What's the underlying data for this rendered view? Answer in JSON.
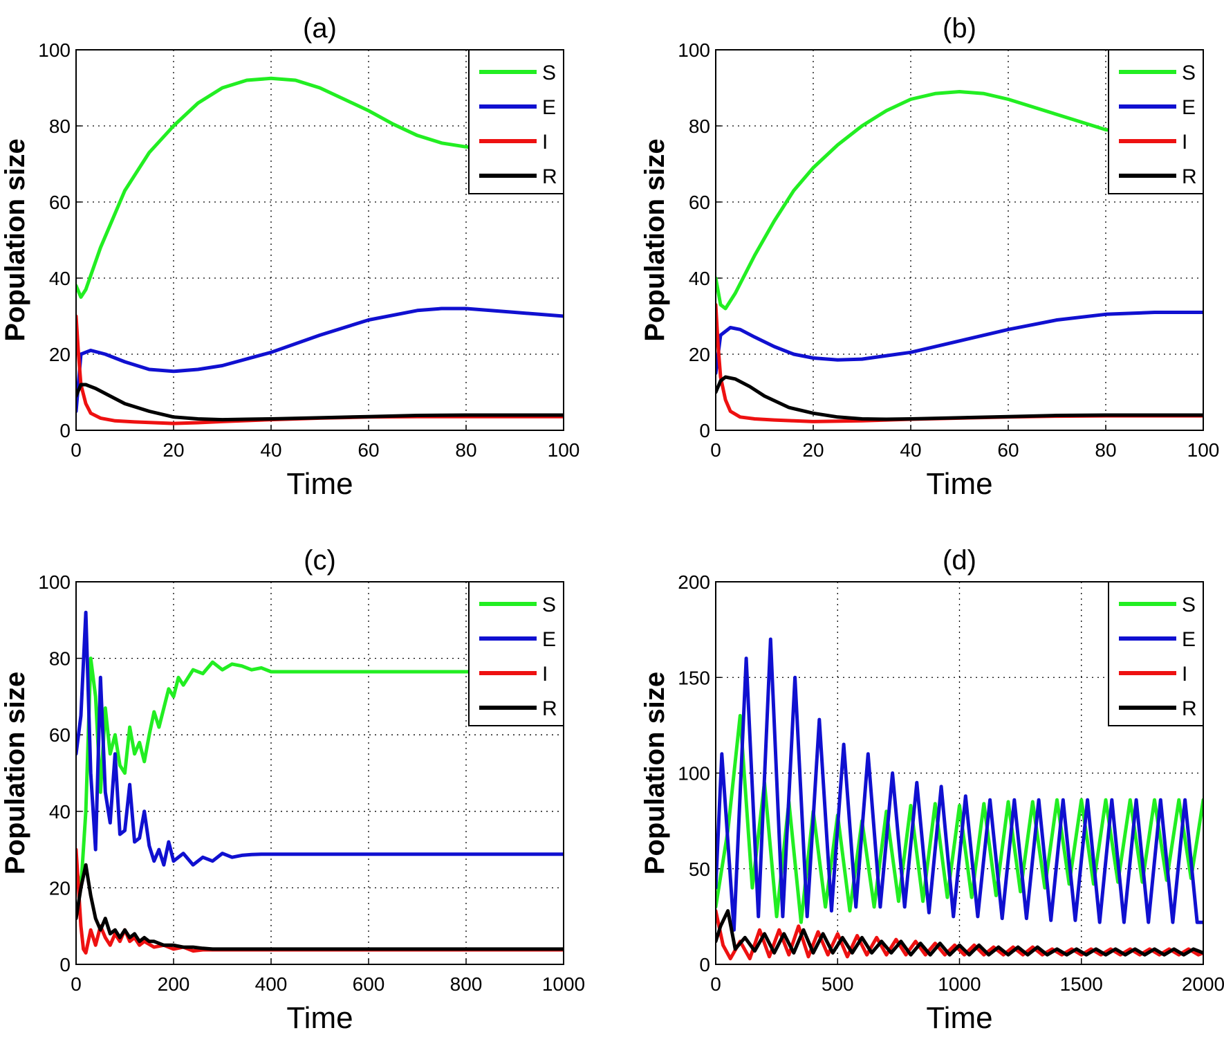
{
  "colors": {
    "S": "#22ee22",
    "E": "#1010d0",
    "I": "#ee1111",
    "R": "#000000"
  },
  "chart_data": [
    {
      "type": "line",
      "title": "(a)",
      "xlabel": "Time",
      "ylabel": "Population size",
      "xlim": [
        0,
        100
      ],
      "ylim": [
        0,
        100
      ],
      "xticks": [
        "0",
        "20",
        "40",
        "60",
        "80",
        "100"
      ],
      "yticks": [
        "0",
        "20",
        "40",
        "60",
        "80",
        "100"
      ],
      "grid": true,
      "legend": "top-right",
      "series": [
        {
          "name": "S",
          "x": [
            0,
            1,
            2,
            5,
            10,
            15,
            20,
            25,
            30,
            35,
            40,
            45,
            50,
            55,
            60,
            65,
            70,
            75,
            80,
            85,
            90,
            95,
            100
          ],
          "y": [
            38,
            35,
            37,
            48,
            63,
            73,
            80,
            86,
            90,
            92,
            92.5,
            92,
            90,
            87,
            84,
            80.5,
            77.5,
            75.5,
            74.5,
            74,
            74.5,
            75.5,
            76.5
          ]
        },
        {
          "name": "E",
          "x": [
            0,
            1,
            3,
            6,
            10,
            15,
            20,
            25,
            30,
            40,
            50,
            60,
            70,
            75,
            80,
            85,
            90,
            95,
            100
          ],
          "y": [
            5,
            20,
            21,
            20,
            18,
            16,
            15.5,
            16,
            17,
            20.5,
            25,
            29,
            31.5,
            32,
            32,
            31.5,
            31,
            30.5,
            30
          ]
        },
        {
          "name": "I",
          "x": [
            0,
            0.5,
            1,
            2,
            3,
            5,
            8,
            12,
            16,
            20,
            25,
            30,
            40,
            50,
            60,
            70,
            80,
            90,
            100
          ],
          "y": [
            30,
            20,
            12,
            7,
            4.5,
            3.2,
            2.5,
            2.2,
            2,
            1.8,
            2,
            2.3,
            2.8,
            3.2,
            3.5,
            3.6,
            3.6,
            3.6,
            3.6
          ]
        },
        {
          "name": "R",
          "x": [
            0,
            1,
            2,
            4,
            7,
            10,
            15,
            20,
            25,
            30,
            35,
            40,
            50,
            60,
            70,
            80,
            90,
            100
          ],
          "y": [
            9,
            12,
            12,
            11,
            9,
            7,
            5,
            3.5,
            3,
            2.8,
            2.9,
            3,
            3.3,
            3.6,
            3.9,
            4,
            4,
            4
          ]
        }
      ]
    },
    {
      "type": "line",
      "title": "(b)",
      "xlabel": "Time",
      "ylabel": "Population size",
      "xlim": [
        0,
        100
      ],
      "ylim": [
        0,
        100
      ],
      "xticks": [
        "0",
        "20",
        "40",
        "60",
        "80",
        "100"
      ],
      "yticks": [
        "0",
        "20",
        "40",
        "60",
        "80",
        "100"
      ],
      "grid": true,
      "legend": "top-right",
      "series": [
        {
          "name": "S",
          "x": [
            0,
            1,
            2,
            4,
            8,
            12,
            16,
            20,
            25,
            30,
            35,
            40,
            45,
            50,
            55,
            60,
            65,
            70,
            75,
            80,
            85,
            90,
            95,
            100
          ],
          "y": [
            40,
            33,
            32,
            36,
            46,
            55,
            63,
            69,
            75,
            80,
            84,
            87,
            88.5,
            89,
            88.5,
            87,
            85,
            83,
            81,
            79,
            78.5,
            78.5,
            79,
            80
          ]
        },
        {
          "name": "E",
          "x": [
            0,
            1,
            3,
            5,
            8,
            12,
            16,
            20,
            25,
            30,
            40,
            50,
            60,
            70,
            80,
            90,
            100
          ],
          "y": [
            15,
            25,
            27,
            26.5,
            24.5,
            22,
            20,
            19,
            18.5,
            18.7,
            20.5,
            23.5,
            26.5,
            29,
            30.5,
            31,
            31
          ]
        },
        {
          "name": "I",
          "x": [
            0,
            0.5,
            1,
            2,
            3,
            5,
            8,
            12,
            16,
            20,
            30,
            40,
            50,
            60,
            70,
            80,
            90,
            100
          ],
          "y": [
            33,
            22,
            14,
            8,
            5,
            3.5,
            3,
            2.7,
            2.5,
            2.3,
            2.5,
            2.9,
            3.2,
            3.5,
            3.7,
            3.8,
            3.8,
            3.8
          ]
        },
        {
          "name": "R",
          "x": [
            0,
            1,
            2,
            4,
            7,
            10,
            15,
            20,
            25,
            30,
            35,
            40,
            50,
            60,
            70,
            80,
            90,
            100
          ],
          "y": [
            10,
            13,
            14,
            13.5,
            11.5,
            9,
            6,
            4.5,
            3.5,
            3,
            2.9,
            3,
            3.3,
            3.6,
            3.9,
            4,
            4,
            4
          ]
        }
      ]
    },
    {
      "type": "line",
      "title": "(c)",
      "xlabel": "Time",
      "ylabel": "Population size",
      "xlim": [
        0,
        1000
      ],
      "ylim": [
        0,
        100
      ],
      "xticks": [
        "0",
        "200",
        "400",
        "600",
        "800",
        "1000"
      ],
      "yticks": [
        "0",
        "20",
        "40",
        "60",
        "80",
        "100"
      ],
      "grid": true,
      "legend": "top-right",
      "series": [
        {
          "name": "S",
          "x": [
            0,
            10,
            20,
            30,
            40,
            50,
            60,
            70,
            80,
            90,
            100,
            110,
            120,
            130,
            140,
            150,
            160,
            170,
            180,
            190,
            200,
            210,
            220,
            240,
            260,
            280,
            300,
            320,
            340,
            360,
            380,
            400,
            450,
            500,
            600,
            700,
            800,
            900,
            1000
          ],
          "y": [
            25,
            20,
            40,
            80,
            70,
            45,
            67,
            55,
            60,
            52,
            50,
            62,
            55,
            58,
            53,
            60,
            66,
            62,
            67,
            72,
            70,
            75,
            73,
            77,
            76,
            79,
            77,
            78.5,
            78,
            77,
            77.5,
            76.5,
            76.5,
            76.5,
            76.5,
            76.5,
            76.5,
            76.5,
            76.5
          ]
        },
        {
          "name": "E",
          "x": [
            0,
            10,
            20,
            30,
            40,
            50,
            60,
            70,
            80,
            90,
            100,
            110,
            120,
            130,
            140,
            150,
            160,
            170,
            180,
            190,
            200,
            220,
            240,
            260,
            280,
            300,
            320,
            340,
            360,
            380,
            400,
            450,
            500,
            600,
            700,
            800,
            900,
            1000
          ],
          "y": [
            55,
            65,
            92,
            50,
            30,
            75,
            45,
            37,
            55,
            34,
            35,
            47,
            32,
            33,
            40,
            31,
            27,
            30,
            26,
            32,
            27,
            29,
            26,
            28,
            27,
            29,
            28,
            28.5,
            28.7,
            28.8,
            28.8,
            28.8,
            28.8,
            28.8,
            28.8,
            28.8,
            28.8,
            28.8
          ]
        },
        {
          "name": "I",
          "x": [
            0,
            5,
            10,
            15,
            20,
            30,
            40,
            50,
            60,
            70,
            80,
            90,
            100,
            110,
            120,
            130,
            140,
            160,
            180,
            200,
            220,
            240,
            260,
            300,
            350,
            400,
            500,
            600,
            700,
            800,
            900,
            1000
          ],
          "y": [
            30,
            20,
            10,
            4,
            3,
            9,
            5,
            10,
            7,
            5,
            8,
            6,
            9,
            6,
            7,
            5,
            6,
            4.5,
            5,
            4,
            4.5,
            3.5,
            3.8,
            3.8,
            3.8,
            3.8,
            3.8,
            3.8,
            3.8,
            3.8,
            3.8,
            3.8
          ]
        },
        {
          "name": "R",
          "x": [
            0,
            10,
            20,
            25,
            30,
            40,
            50,
            60,
            70,
            80,
            90,
            100,
            110,
            120,
            130,
            140,
            150,
            160,
            180,
            200,
            220,
            240,
            260,
            280,
            300,
            350,
            400,
            500,
            600,
            700,
            800,
            900,
            1000
          ],
          "y": [
            12,
            20,
            26,
            22,
            18,
            12,
            9,
            12,
            8,
            9,
            7,
            9,
            7,
            8,
            6,
            7,
            6,
            6,
            5,
            5,
            4.5,
            4.5,
            4.2,
            4,
            4,
            4,
            4,
            4,
            4,
            4,
            4,
            4,
            4
          ]
        }
      ]
    },
    {
      "type": "line",
      "title": "(d)",
      "xlabel": "Time",
      "ylabel": "Population size",
      "xlim": [
        0,
        2000
      ],
      "ylim": [
        0,
        200
      ],
      "xticks": [
        "0",
        "500",
        "1000",
        "1500",
        "2000"
      ],
      "yticks": [
        "0",
        "50",
        "100",
        "150",
        "200"
      ],
      "grid": true,
      "legend": "top-right",
      "series": [
        {
          "name": "S",
          "x": [
            0,
            50,
            100,
            150,
            200,
            250,
            300,
            350,
            400,
            450,
            500,
            550,
            600,
            650,
            700,
            750,
            800,
            850,
            900,
            950,
            1000,
            1050,
            1100,
            1150,
            1200,
            1250,
            1300,
            1350,
            1400,
            1450,
            1500,
            1550,
            1600,
            1650,
            1700,
            1750,
            1800,
            1850,
            1900,
            1950,
            2000
          ],
          "y": [
            30,
            70,
            130,
            40,
            95,
            25,
            85,
            22,
            80,
            30,
            78,
            28,
            75,
            30,
            80,
            33,
            83,
            33,
            84,
            35,
            83,
            35,
            84,
            36,
            85,
            38,
            85,
            40,
            86,
            42,
            86,
            42,
            86,
            43,
            86,
            43,
            86,
            44,
            86,
            45,
            86
          ]
        },
        {
          "name": "E",
          "x": [
            0,
            25,
            75,
            125,
            175,
            225,
            275,
            325,
            375,
            425,
            475,
            525,
            575,
            625,
            675,
            725,
            775,
            825,
            875,
            925,
            975,
            1025,
            1075,
            1125,
            1175,
            1225,
            1275,
            1325,
            1375,
            1425,
            1475,
            1525,
            1575,
            1625,
            1675,
            1725,
            1775,
            1825,
            1875,
            1925,
            1975,
            2000
          ],
          "y": [
            40,
            110,
            18,
            160,
            25,
            170,
            25,
            150,
            25,
            128,
            28,
            115,
            30,
            110,
            30,
            100,
            30,
            95,
            27,
            93,
            25,
            88,
            25,
            86,
            24,
            86,
            24,
            86,
            23,
            86,
            23,
            86,
            22,
            86,
            22,
            86,
            22,
            86,
            22,
            86,
            22,
            22
          ]
        },
        {
          "name": "I",
          "x": [
            0,
            30,
            60,
            100,
            140,
            180,
            220,
            260,
            300,
            340,
            380,
            420,
            460,
            500,
            540,
            580,
            620,
            660,
            700,
            740,
            780,
            820,
            860,
            900,
            940,
            980,
            1020,
            1060,
            1100,
            1140,
            1180,
            1220,
            1260,
            1300,
            1340,
            1380,
            1420,
            1460,
            1500,
            1540,
            1580,
            1620,
            1660,
            1700,
            1740,
            1780,
            1820,
            1860,
            1900,
            1940,
            1980,
            2000
          ],
          "y": [
            28,
            10,
            3,
            12,
            3,
            18,
            4,
            18,
            5,
            20,
            4,
            17,
            5,
            16,
            4,
            15,
            5,
            14,
            5,
            13,
            5,
            12,
            5,
            11,
            5,
            10,
            5,
            10,
            5,
            9,
            5,
            9,
            5,
            9,
            5,
            8,
            5,
            8,
            5,
            8,
            5,
            8,
            5,
            8,
            5,
            8,
            5,
            8,
            5,
            8,
            5,
            6
          ]
        },
        {
          "name": "R",
          "x": [
            0,
            20,
            50,
            80,
            120,
            160,
            200,
            240,
            280,
            320,
            360,
            400,
            440,
            480,
            520,
            560,
            600,
            640,
            680,
            720,
            760,
            800,
            840,
            880,
            920,
            960,
            1000,
            1040,
            1080,
            1120,
            1160,
            1200,
            1240,
            1280,
            1320,
            1360,
            1400,
            1440,
            1480,
            1520,
            1560,
            1600,
            1640,
            1680,
            1720,
            1760,
            1800,
            1840,
            1880,
            1920,
            1960,
            2000
          ],
          "y": [
            12,
            20,
            28,
            8,
            14,
            7,
            16,
            6,
            16,
            6,
            18,
            6,
            16,
            6,
            14,
            6,
            14,
            6,
            12,
            6,
            12,
            5,
            11,
            5,
            11,
            5,
            10,
            5,
            10,
            5,
            9,
            5,
            9,
            5,
            9,
            5,
            8,
            5,
            8,
            5,
            8,
            5,
            8,
            5,
            8,
            5,
            8,
            5,
            8,
            5,
            8,
            6
          ]
        }
      ]
    }
  ]
}
